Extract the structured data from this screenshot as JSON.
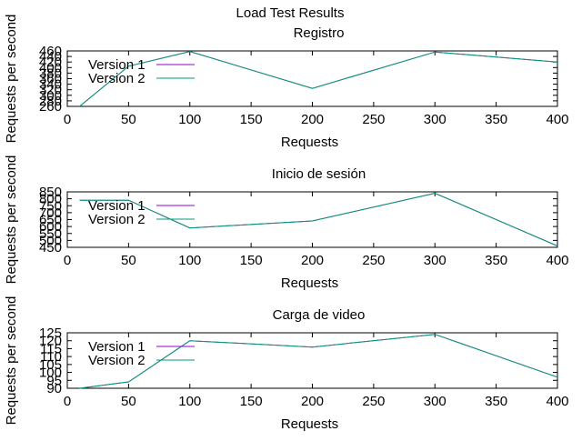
{
  "figure": {
    "title": "Load Test Results"
  },
  "chart_data": [
    {
      "type": "line",
      "title": "Registro",
      "xlabel": "Requests",
      "ylabel": "Requests per second",
      "xlim": [
        0,
        400
      ],
      "ylim": [
        260,
        460
      ],
      "xticks": [
        0,
        50,
        100,
        150,
        200,
        250,
        300,
        350,
        400
      ],
      "yticks": [
        260,
        280,
        300,
        320,
        340,
        360,
        380,
        400,
        420,
        440,
        460
      ],
      "ytick_labels": [
        "260",
        "280",
        "300",
        "320",
        "340",
        "360",
        "380",
        "400",
        "420",
        "440",
        "460"
      ],
      "x": [
        10,
        50,
        100,
        200,
        300,
        400
      ],
      "series": [
        {
          "name": "Version 1",
          "color": "#9400d3",
          "values": [
            260,
            405,
            458,
            325,
            456,
            420
          ]
        },
        {
          "name": "Version 2",
          "color": "#009e73",
          "values": [
            260,
            405,
            458,
            325,
            456,
            420
          ]
        }
      ],
      "legend": "top-left",
      "grid": false
    },
    {
      "type": "line",
      "title": "Inicio de sesión",
      "xlabel": "Requests",
      "ylabel": "Requests per second",
      "xlim": [
        0,
        400
      ],
      "ylim": [
        450,
        850
      ],
      "xticks": [
        0,
        50,
        100,
        150,
        200,
        250,
        300,
        350,
        400
      ],
      "yticks": [
        450,
        500,
        550,
        600,
        650,
        700,
        750,
        800,
        850
      ],
      "ytick_labels": [
        "450",
        "500",
        "550",
        "600",
        "650",
        "700",
        "750",
        "800",
        "850"
      ],
      "x": [
        10,
        50,
        100,
        200,
        300,
        400
      ],
      "series": [
        {
          "name": "Version 1",
          "color": "#9400d3",
          "values": [
            790,
            790,
            590,
            640,
            840,
            460
          ]
        },
        {
          "name": "Version 2",
          "color": "#009e73",
          "values": [
            790,
            790,
            590,
            640,
            840,
            460
          ]
        }
      ],
      "legend": "top-left",
      "grid": false
    },
    {
      "type": "line",
      "title": "Carga de video",
      "xlabel": "Requests",
      "ylabel": "Requests per second",
      "xlim": [
        0,
        400
      ],
      "ylim": [
        90,
        125
      ],
      "xticks": [
        0,
        50,
        100,
        150,
        200,
        250,
        300,
        350,
        400
      ],
      "yticks": [
        90,
        95,
        100,
        105,
        110,
        115,
        120,
        125
      ],
      "ytick_labels": [
        "90",
        "95",
        "100",
        "105",
        "110",
        "115",
        "120",
        "125"
      ],
      "x": [
        10,
        50,
        100,
        200,
        300,
        400
      ],
      "series": [
        {
          "name": "Version 1",
          "color": "#9400d3",
          "values": [
            90,
            94,
            120,
            116,
            124,
            97
          ]
        },
        {
          "name": "Version 2",
          "color": "#009e73",
          "values": [
            90,
            94,
            120,
            116,
            124,
            97
          ]
        }
      ],
      "legend": "top-left",
      "grid": false
    }
  ]
}
